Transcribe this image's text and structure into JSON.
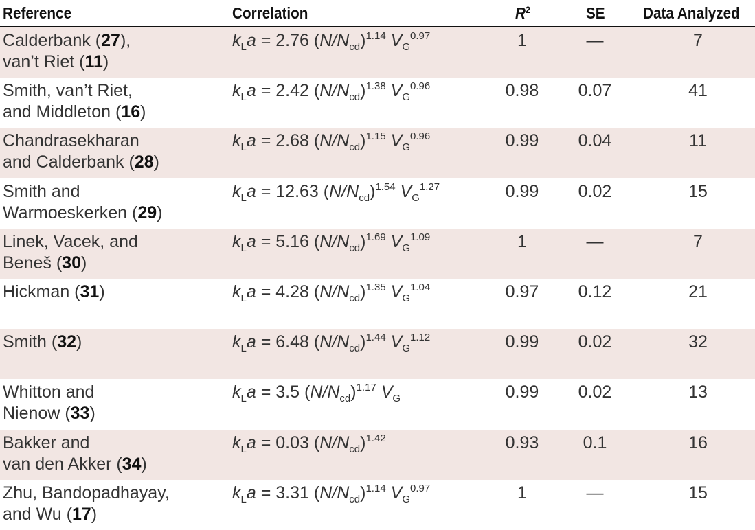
{
  "header": {
    "reference": "Reference",
    "correlation": "Correlation",
    "r2": {
      "base": "R",
      "sup": "2"
    },
    "se": "SE",
    "data_analyzed": "Data Analyzed"
  },
  "symbols": {
    "k": "k",
    "k_sub": "L",
    "a": "a",
    "eq": "=",
    "open": "(",
    "n": "N",
    "slash": "/",
    "n_cd": "N",
    "n_cd_sub": "cd",
    "close": ")",
    "v": "V",
    "v_sub": "G"
  },
  "rows": [
    {
      "reference": [
        [
          "Calderbank (",
          "27",
          "),"
        ],
        [
          "van’t Riet (",
          "11",
          ")"
        ]
      ],
      "correlation": {
        "coef": 2.76,
        "n_exp": 1.14,
        "vg_exp": 0.97
      },
      "r2": 1,
      "se": "—",
      "data_analyzed": 7
    },
    {
      "reference": [
        [
          "Smith, van’t Riet,"
        ],
        [
          "and Middleton  (",
          "16",
          ")"
        ]
      ],
      "correlation": {
        "coef": 2.42,
        "n_exp": 1.38,
        "vg_exp": 0.96
      },
      "r2": 0.98,
      "se": 0.07,
      "data_analyzed": 41
    },
    {
      "reference": [
        [
          "Chandrasekharan"
        ],
        [
          "and Calderbank (",
          "28",
          ")"
        ]
      ],
      "correlation": {
        "coef": 2.68,
        "n_exp": 1.15,
        "vg_exp": 0.96
      },
      "r2": 0.99,
      "se": 0.04,
      "data_analyzed": 11
    },
    {
      "reference": [
        [
          "Smith and"
        ],
        [
          "Warmoeskerken (",
          "29",
          ")"
        ]
      ],
      "correlation": {
        "coef": 12.63,
        "n_exp": 1.54,
        "vg_exp": 1.27
      },
      "r2": 0.99,
      "se": 0.02,
      "data_analyzed": 15
    },
    {
      "reference": [
        [
          "Linek, Vacek, and"
        ],
        [
          "Beneš (",
          "30",
          ")"
        ]
      ],
      "correlation": {
        "coef": 5.16,
        "n_exp": 1.69,
        "vg_exp": 1.09
      },
      "r2": 1,
      "se": "—",
      "data_analyzed": 7
    },
    {
      "reference": [
        [
          "Hickman (",
          "31",
          ")"
        ]
      ],
      "correlation": {
        "coef": 4.28,
        "n_exp": 1.35,
        "vg_exp": 1.04
      },
      "r2": 0.97,
      "se": 0.12,
      "data_analyzed": 21
    },
    {
      "reference": [
        [
          "Smith (",
          "32",
          ")"
        ]
      ],
      "correlation": {
        "coef": 6.48,
        "n_exp": 1.44,
        "vg_exp": 1.12
      },
      "r2": 0.99,
      "se": 0.02,
      "data_analyzed": 32
    },
    {
      "reference": [
        [
          "Whitton and"
        ],
        [
          "Nienow (",
          "33",
          ")"
        ]
      ],
      "correlation": {
        "coef": 3.5,
        "n_exp": 1.17,
        "vg_exp": null
      },
      "r2": 0.99,
      "se": 0.02,
      "data_analyzed": 13
    },
    {
      "reference": [
        [
          "Bakker and"
        ],
        [
          "van den Akker (",
          "34",
          ")"
        ]
      ],
      "correlation": {
        "coef": 0.03,
        "n_exp": 1.42
      },
      "r2": 0.93,
      "se": 0.1,
      "data_analyzed": 16
    },
    {
      "reference": [
        [
          "Zhu, Bandopadhayay,"
        ],
        [
          "and Wu (",
          "17",
          ")"
        ]
      ],
      "correlation": {
        "coef": 3.31,
        "n_exp": 1.14,
        "vg_exp": 0.97
      },
      "r2": 1,
      "se": "—",
      "data_analyzed": 15
    }
  ]
}
